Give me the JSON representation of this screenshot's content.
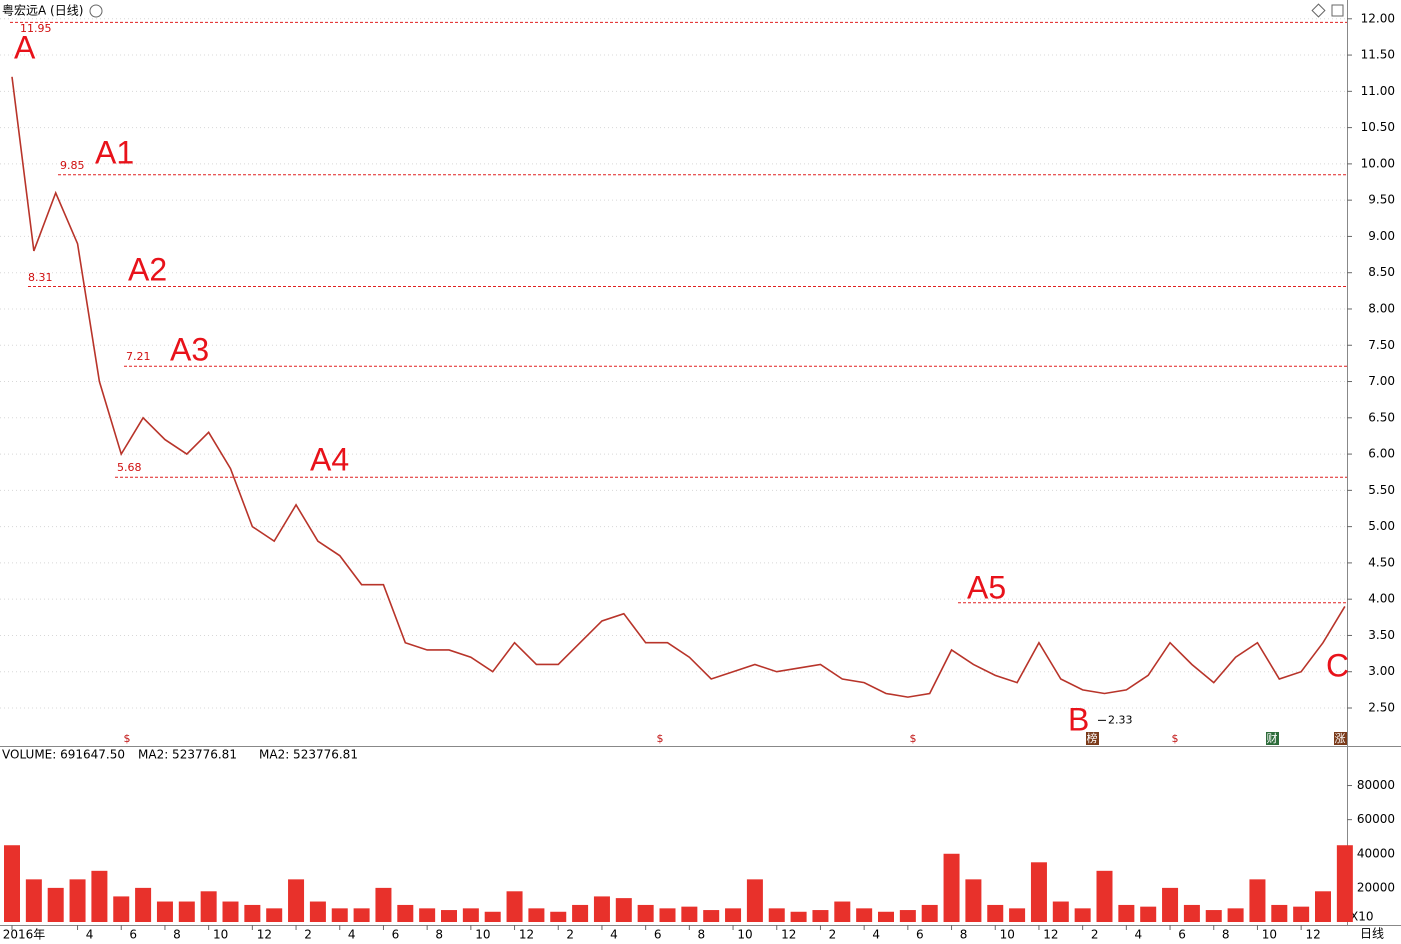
{
  "chart_data": [
    {
      "type": "line",
      "title": "粤宏远A (日线)",
      "period_label": "日线",
      "categories": [
        "2016年",
        null,
        null,
        "4",
        null,
        "6",
        null,
        "8",
        null,
        "10",
        null,
        "12",
        null,
        "2",
        null,
        "4",
        null,
        "6",
        null,
        "8",
        null,
        "10",
        null,
        "12",
        null,
        "2",
        null,
        "4",
        null,
        "6",
        null,
        "8",
        null,
        "10",
        null,
        "12",
        null,
        "2",
        null,
        "4",
        null,
        "6",
        null,
        "8",
        null,
        "10",
        null,
        "12",
        null,
        "2",
        null,
        "4",
        null,
        "6",
        null,
        "8",
        null,
        "10",
        null,
        "12",
        null,
        null
      ],
      "values": [
        11.2,
        8.8,
        9.6,
        8.9,
        7.0,
        6.0,
        6.5,
        6.2,
        6.0,
        6.3,
        5.8,
        5.0,
        4.8,
        5.3,
        4.8,
        4.6,
        4.2,
        4.2,
        3.4,
        3.3,
        3.3,
        3.2,
        3.0,
        3.4,
        3.1,
        3.1,
        3.4,
        3.7,
        3.8,
        3.4,
        3.4,
        3.2,
        2.9,
        3.0,
        3.1,
        3.0,
        3.05,
        3.1,
        2.9,
        2.85,
        2.7,
        2.65,
        2.7,
        3.3,
        3.1,
        2.95,
        2.85,
        3.4,
        2.9,
        2.75,
        2.7,
        2.75,
        2.95,
        3.4,
        3.1,
        2.85,
        3.2,
        3.4,
        2.9,
        3.0,
        3.4,
        3.9
      ],
      "color": "#b8342a",
      "ylim": [
        1.99,
        12.19
      ],
      "yticks": [
        {
          "value": 2.5,
          "label": "2.50"
        },
        {
          "value": 3,
          "label": "3.00"
        },
        {
          "value": 3.5,
          "label": "3.50"
        },
        {
          "value": 4,
          "label": "4.00"
        },
        {
          "value": 4.5,
          "label": "4.50"
        },
        {
          "value": 5,
          "label": "5.00"
        },
        {
          "value": 5.5,
          "label": "5.50"
        },
        {
          "value": 6,
          "label": "6.00"
        },
        {
          "value": 6.5,
          "label": "6.50"
        },
        {
          "value": 7,
          "label": "7.00"
        },
        {
          "value": 7.5,
          "label": "7.50"
        },
        {
          "value": 8,
          "label": "8.00"
        },
        {
          "value": 8.5,
          "label": "8.50"
        },
        {
          "value": 9,
          "label": "9.00"
        },
        {
          "value": 9.5,
          "label": "9.50"
        },
        {
          "value": 10,
          "label": "10.00"
        },
        {
          "value": 10.5,
          "label": "10.50"
        },
        {
          "value": 11,
          "label": "11.00"
        },
        {
          "value": 11.5,
          "label": "11.50"
        },
        {
          "value": 12,
          "label": "12.00"
        }
      ],
      "grid": true,
      "levels": [
        {
          "name": "A",
          "value": 11.95,
          "show_value": true
        },
        {
          "name": "A1",
          "value": 9.85,
          "show_value": true
        },
        {
          "name": "A2",
          "value": 8.31,
          "show_value": true
        },
        {
          "name": "A3",
          "value": 7.21,
          "show_value": true
        },
        {
          "name": "A4",
          "value": 5.68,
          "show_value": true
        },
        {
          "name": "A5",
          "value": 3.95,
          "show_value": false
        }
      ],
      "points": [
        {
          "name": "B",
          "value": 2.33,
          "show_value": true
        },
        {
          "name": "C",
          "value": 3.2,
          "show_value": false
        }
      ],
      "event_markers": [
        "$",
        "$",
        "$",
        "榜",
        "$",
        "财",
        "涨"
      ]
    },
    {
      "type": "bar",
      "title": "VOLUME: 691647.50",
      "indicators": [
        {
          "text": "MA2: 523776.81",
          "color": "#000000"
        },
        {
          "text": "MA2: 523776.81",
          "color": "#d81ed8"
        }
      ],
      "unit_label": "X10",
      "values": [
        45000,
        25000,
        20000,
        25000,
        30000,
        15000,
        20000,
        12000,
        12000,
        18000,
        12000,
        10000,
        8000,
        25000,
        12000,
        8000,
        8000,
        20000,
        10000,
        8000,
        7000,
        8000,
        6000,
        18000,
        8000,
        6000,
        10000,
        15000,
        14000,
        10000,
        8000,
        9000,
        7000,
        8000,
        25000,
        8000,
        6000,
        7000,
        12000,
        8000,
        6000,
        7000,
        10000,
        40000,
        25000,
        10000,
        8000,
        35000,
        12000,
        8000,
        30000,
        10000,
        9000,
        20000,
        10000,
        7000,
        8000,
        25000,
        10000,
        9000,
        18000,
        45000
      ],
      "color": "#e8312b",
      "ylim": [
        0,
        102000
      ],
      "yticks": [
        20000,
        40000,
        60000,
        80000
      ],
      "grid": false
    }
  ]
}
